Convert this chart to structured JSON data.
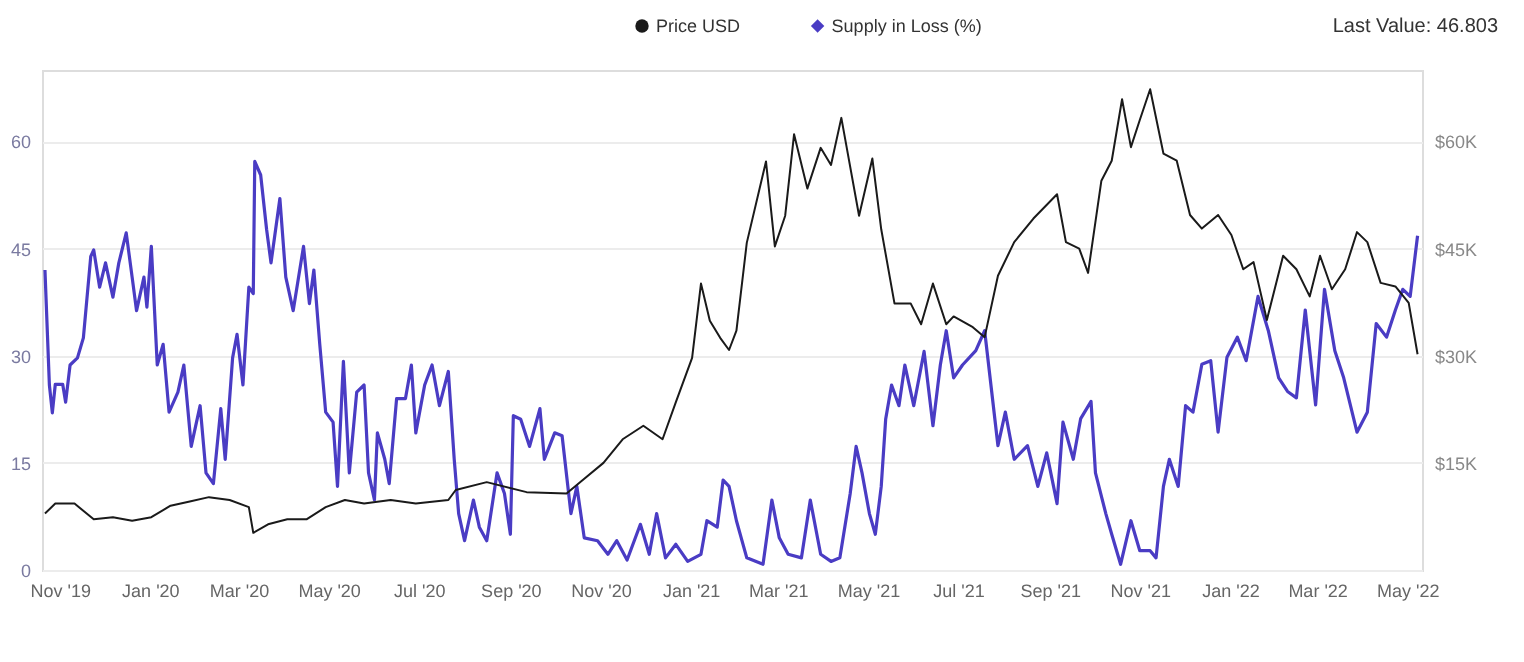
{
  "chart_data": {
    "type": "line",
    "xlim": [
      "2019-10-20",
      "2022-05-11"
    ],
    "xticks": [
      {
        "value": "2019-11-01",
        "label": "Nov '19"
      },
      {
        "value": "2020-01-01",
        "label": "Jan '20"
      },
      {
        "value": "2020-03-01",
        "label": "Mar '20"
      },
      {
        "value": "2020-05-01",
        "label": "May '20"
      },
      {
        "value": "2020-07-01",
        "label": "Jul '20"
      },
      {
        "value": "2020-09-01",
        "label": "Sep '20"
      },
      {
        "value": "2020-11-01",
        "label": "Nov '20"
      },
      {
        "value": "2021-01-01",
        "label": "Jan '21"
      },
      {
        "value": "2021-03-01",
        "label": "Mar '21"
      },
      {
        "value": "2021-05-01",
        "label": "May '21"
      },
      {
        "value": "2021-07-01",
        "label": "Jul '21"
      },
      {
        "value": "2021-09-01",
        "label": "Sep '21"
      },
      {
        "value": "2021-11-01",
        "label": "Nov '21"
      },
      {
        "value": "2022-01-01",
        "label": "Jan '22"
      },
      {
        "value": "2022-03-01",
        "label": "Mar '22"
      },
      {
        "value": "2022-05-01",
        "label": "May '22"
      }
    ],
    "ylim": [
      0,
      70
    ],
    "yticks": [
      0,
      15,
      30,
      45,
      60
    ],
    "y2lim": [
      0,
      70000
    ],
    "y2ticks": [
      {
        "value": 15000,
        "label": "$15K"
      },
      {
        "value": 30000,
        "label": "$30K"
      },
      {
        "value": 45000,
        "label": "$45K"
      },
      {
        "value": 60000,
        "label": "$60K"
      }
    ],
    "grid": "y",
    "legend": "top",
    "annotations": [
      "Last Value: 46.803"
    ],
    "series": [
      {
        "name": "Price USD",
        "color": "#1a1a1a",
        "axis": "y2",
        "x": [
          "2019-10-22",
          "2019-10-29",
          "2019-11-11",
          "2019-11-24",
          "2019-12-07",
          "2019-12-20",
          "2020-01-02",
          "2020-01-15",
          "2020-01-28",
          "2020-02-10",
          "2020-02-24",
          "2020-03-08",
          "2020-03-11",
          "2020-03-21",
          "2020-04-03",
          "2020-04-16",
          "2020-04-29",
          "2020-05-12",
          "2020-05-25",
          "2020-06-12",
          "2020-06-29",
          "2020-07-21",
          "2020-07-26",
          "2020-08-16",
          "2020-09-12",
          "2020-10-09",
          "2020-10-20",
          "2020-11-03",
          "2020-11-16",
          "2020-11-30",
          "2020-12-13",
          "2020-12-22",
          "2021-01-02",
          "2021-01-08",
          "2021-01-14",
          "2021-01-21",
          "2021-01-27",
          "2021-02-01",
          "2021-02-08",
          "2021-02-21",
          "2021-02-27",
          "2021-03-06",
          "2021-03-12",
          "2021-03-21",
          "2021-03-30",
          "2021-04-06",
          "2021-04-13",
          "2021-04-25",
          "2021-05-04",
          "2021-05-10",
          "2021-05-19",
          "2021-05-30",
          "2021-06-06",
          "2021-06-14",
          "2021-06-23",
          "2021-06-28",
          "2021-07-11",
          "2021-07-19",
          "2021-07-28",
          "2021-08-08",
          "2021-08-21",
          "2021-09-06",
          "2021-09-12",
          "2021-09-21",
          "2021-09-27",
          "2021-10-06",
          "2021-10-13",
          "2021-10-20",
          "2021-10-26",
          "2021-11-01",
          "2021-11-08",
          "2021-11-17",
          "2021-11-26",
          "2021-12-05",
          "2021-12-13",
          "2021-12-24",
          "2022-01-02",
          "2022-01-10",
          "2022-01-17",
          "2022-01-26",
          "2022-02-06",
          "2022-02-15",
          "2022-02-24",
          "2022-03-03",
          "2022-03-11",
          "2022-03-20",
          "2022-03-28",
          "2022-04-04",
          "2022-04-13",
          "2022-04-23",
          "2022-05-02",
          "2022-05-08"
        ],
        "values": [
          7900,
          9300,
          9300,
          7100,
          7400,
          6900,
          7400,
          9000,
          9600,
          10200,
          9800,
          8800,
          5200,
          6400,
          7100,
          7100,
          8800,
          9800,
          9300,
          9800,
          9300,
          9800,
          11200,
          12300,
          10900,
          10700,
          12600,
          15000,
          18300,
          20200,
          18300,
          23500,
          29700,
          40100,
          34900,
          32500,
          30800,
          33500,
          45800,
          57200,
          45300,
          49600,
          61000,
          53400,
          59100,
          56700,
          63300,
          49600,
          57600,
          47700,
          37300,
          37300,
          34400,
          40100,
          34400,
          35500,
          34000,
          32600,
          41200,
          45900,
          49200,
          52600,
          45900,
          45000,
          41600,
          54500,
          57300,
          65900,
          59200,
          63000,
          67300,
          58300,
          57300,
          49700,
          47800,
          49700,
          46900,
          42100,
          43100,
          35000,
          44000,
          42100,
          38300,
          44000,
          39300,
          42100,
          47300,
          45900,
          40200,
          39700,
          37400,
          30200
        ]
      },
      {
        "name": "Supply in Loss (%)",
        "color": "#4a3cc4",
        "axis": "y",
        "x": [
          "2019-10-22",
          "2019-10-25",
          "2019-10-27",
          "2019-10-29",
          "2019-11-03",
          "2019-11-05",
          "2019-11-08",
          "2019-11-13",
          "2019-11-17",
          "2019-11-22",
          "2019-11-24",
          "2019-11-28",
          "2019-12-02",
          "2019-12-07",
          "2019-12-11",
          "2019-12-16",
          "2019-12-20",
          "2019-12-23",
          "2019-12-28",
          "2019-12-30",
          "2020-01-02",
          "2020-01-06",
          "2020-01-10",
          "2020-01-14",
          "2020-01-20",
          "2020-01-24",
          "2020-01-29",
          "2020-02-04",
          "2020-02-08",
          "2020-02-13",
          "2020-02-18",
          "2020-02-21",
          "2020-02-26",
          "2020-02-29",
          "2020-03-04",
          "2020-03-08",
          "2020-03-11",
          "2020-03-12",
          "2020-03-16",
          "2020-03-20",
          "2020-03-23",
          "2020-03-29",
          "2020-04-02",
          "2020-04-07",
          "2020-04-14",
          "2020-04-18",
          "2020-04-21",
          "2020-04-25",
          "2020-04-29",
          "2020-05-04",
          "2020-05-07",
          "2020-05-11",
          "2020-05-15",
          "2020-05-20",
          "2020-05-25",
          "2020-05-28",
          "2020-06-01",
          "2020-06-03",
          "2020-06-08",
          "2020-06-11",
          "2020-06-16",
          "2020-06-22",
          "2020-06-26",
          "2020-06-29",
          "2020-07-05",
          "2020-07-10",
          "2020-07-15",
          "2020-07-21",
          "2020-07-25",
          "2020-07-28",
          "2020-08-01",
          "2020-08-07",
          "2020-08-11",
          "2020-08-16",
          "2020-08-23",
          "2020-08-28",
          "2020-09-01",
          "2020-09-03",
          "2020-09-08",
          "2020-09-14",
          "2020-09-21",
          "2020-09-24",
          "2020-10-01",
          "2020-10-06",
          "2020-10-12",
          "2020-10-16",
          "2020-10-21",
          "2020-10-30",
          "2020-11-06",
          "2020-11-12",
          "2020-11-19",
          "2020-11-28",
          "2020-12-04",
          "2020-12-09",
          "2020-12-15",
          "2020-12-22",
          "2020-12-30",
          "2021-01-08",
          "2021-01-12",
          "2021-01-19",
          "2021-01-23",
          "2021-01-27",
          "2021-02-01",
          "2021-02-08",
          "2021-02-19",
          "2021-02-25",
          "2021-03-02",
          "2021-03-08",
          "2021-03-17",
          "2021-03-23",
          "2021-03-30",
          "2021-04-06",
          "2021-04-12",
          "2021-04-19",
          "2021-04-23",
          "2021-04-27",
          "2021-05-02",
          "2021-05-06",
          "2021-05-10",
          "2021-05-13",
          "2021-05-17",
          "2021-05-22",
          "2021-05-26",
          "2021-06-01",
          "2021-06-08",
          "2021-06-14",
          "2021-06-19",
          "2021-06-23",
          "2021-06-28",
          "2021-07-04",
          "2021-07-13",
          "2021-07-19",
          "2021-07-28",
          "2021-08-02",
          "2021-08-08",
          "2021-08-17",
          "2021-08-24",
          "2021-08-30",
          "2021-09-06",
          "2021-09-10",
          "2021-09-17",
          "2021-09-22",
          "2021-09-29",
          "2021-10-02",
          "2021-10-09",
          "2021-10-13",
          "2021-10-19",
          "2021-10-26",
          "2021-11-01",
          "2021-11-08",
          "2021-11-12",
          "2021-11-17",
          "2021-11-21",
          "2021-11-27",
          "2021-12-02",
          "2021-12-07",
          "2021-12-13",
          "2021-12-19",
          "2021-12-24",
          "2021-12-30",
          "2022-01-06",
          "2022-01-12",
          "2022-01-20",
          "2022-01-27",
          "2022-02-03",
          "2022-02-09",
          "2022-02-15",
          "2022-02-21",
          "2022-02-28",
          "2022-03-06",
          "2022-03-13",
          "2022-03-19",
          "2022-03-28",
          "2022-04-04",
          "2022-04-10",
          "2022-04-17",
          "2022-04-23",
          "2022-04-28",
          "2022-05-03",
          "2022-05-08"
        ],
        "values": [
          42,
          25.9,
          22,
          26,
          26,
          23.5,
          28.7,
          29.7,
          32.5,
          43.9,
          44.8,
          39.6,
          43,
          38.2,
          43,
          47.2,
          41,
          36.3,
          41,
          36.8,
          45.3,
          28.7,
          31.6,
          22.1,
          24.9,
          28.7,
          17.3,
          23,
          13.6,
          12.1,
          22.6,
          15.5,
          29.7,
          33,
          25.9,
          39.6,
          38.7,
          57.2,
          55.3,
          47.7,
          43,
          52,
          41,
          36.3,
          45.3,
          37.3,
          42,
          31.6,
          22.1,
          20.7,
          11.7,
          29.2,
          13.6,
          24.9,
          25.9,
          13.6,
          9.8,
          19.2,
          15.5,
          12.1,
          24,
          24,
          28.7,
          19.2,
          25.9,
          28.7,
          23,
          27.8,
          15.5,
          7.9,
          4.1,
          9.8,
          6,
          4.1,
          13.6,
          10.7,
          5,
          21.6,
          21.1,
          17.3,
          22.6,
          15.5,
          19.2,
          18.8,
          7.9,
          11.7,
          4.5,
          4.1,
          2.2,
          4.1,
          1.4,
          6.4,
          2.2,
          7.9,
          1.7,
          3.6,
          1.2,
          2.2,
          6.9,
          6,
          12.6,
          11.7,
          6.9,
          1.7,
          0.8,
          9.8,
          4.5,
          2.2,
          1.7,
          9.8,
          2.2,
          1.2,
          1.7,
          10.7,
          17.3,
          13.6,
          7.9,
          5,
          11.7,
          21.1,
          25.9,
          23,
          28.7,
          23,
          30.6,
          20.2,
          28.7,
          33.5,
          26.9,
          28.7,
          30.7,
          33.5,
          17.4,
          22.1,
          15.5,
          17.4,
          11.7,
          16.4,
          9.3,
          20.7,
          15.5,
          21.2,
          23.6,
          13.6,
          7.9,
          5,
          0.8,
          6.9,
          2.7,
          2.7,
          1.7,
          11.7,
          15.5,
          11.7,
          23,
          22.1,
          28.8,
          29.3,
          19.3,
          29.8,
          32.6,
          29.3,
          38.3,
          33.5,
          26.9,
          25,
          24.1,
          36.4,
          23.1,
          39.3,
          30.7,
          26.9,
          19.3,
          22.1,
          34.5,
          32.6,
          36.4,
          39.3,
          38.3,
          46.8
        ]
      }
    ]
  }
}
